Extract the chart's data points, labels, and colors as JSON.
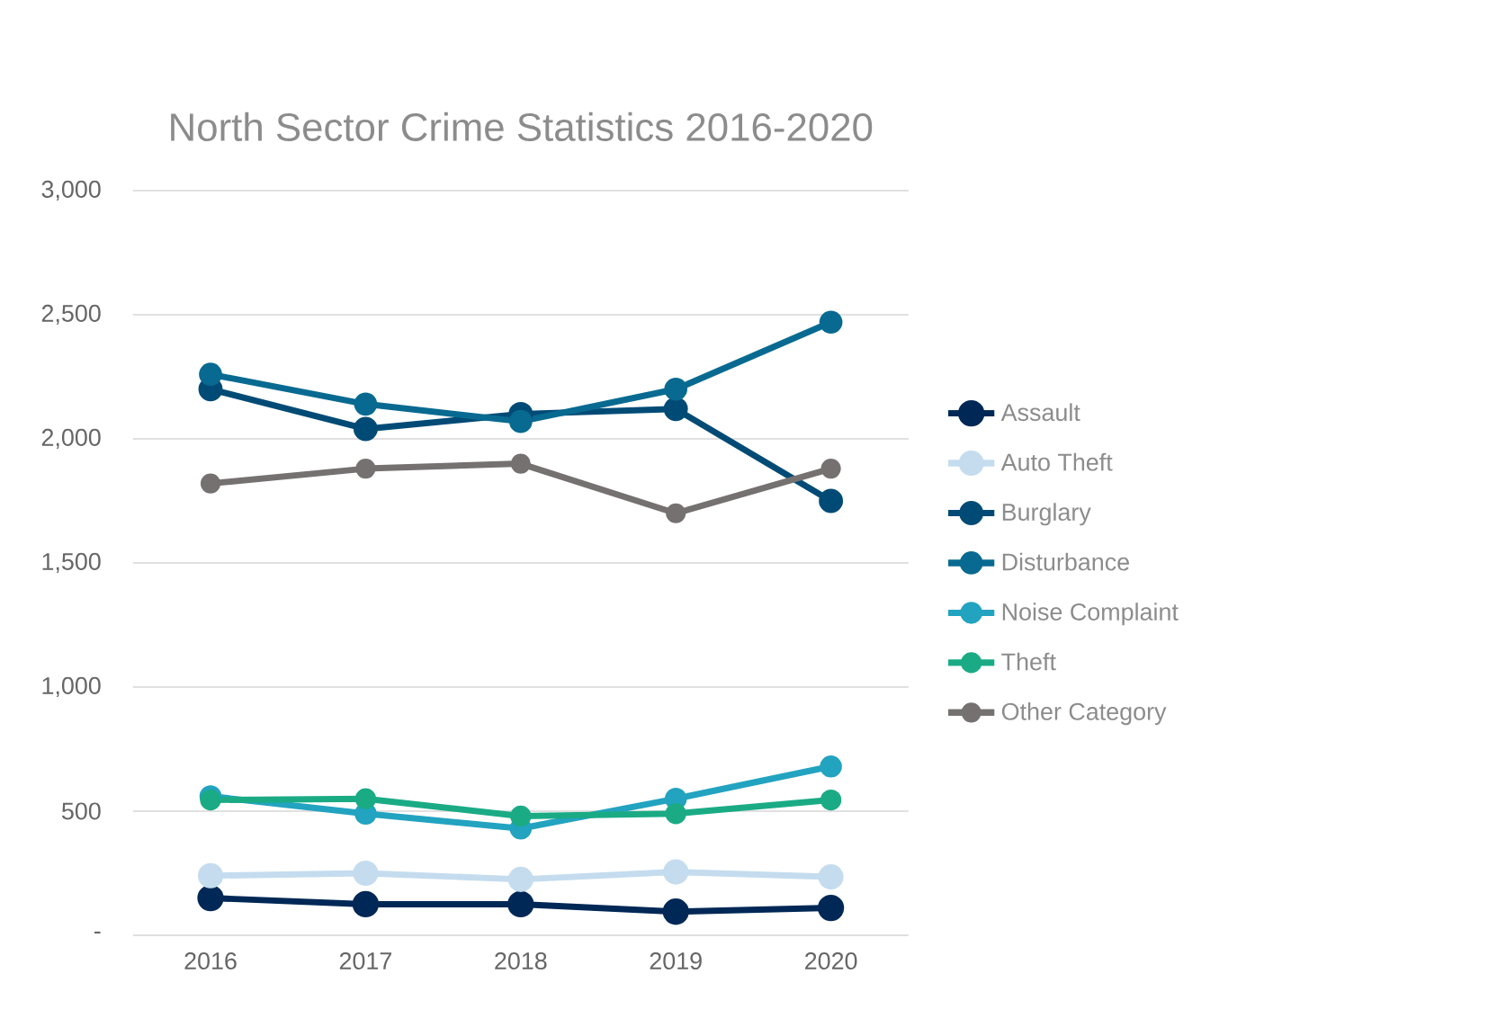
{
  "chart_data": {
    "type": "line",
    "title": "North Sector Crime Statistics 2016-2020",
    "categories": [
      "2016",
      "2017",
      "2018",
      "2019",
      "2020"
    ],
    "series": [
      {
        "name": "Assault",
        "color": "#002856",
        "values": [
          150,
          125,
          125,
          95,
          110
        ]
      },
      {
        "name": "Auto Theft",
        "color": "#c5dcef",
        "values": [
          240,
          250,
          225,
          255,
          235
        ]
      },
      {
        "name": "Burglary",
        "color": "#004b76",
        "values": [
          2200,
          2040,
          2100,
          2120,
          1750
        ]
      },
      {
        "name": "Disturbance",
        "color": "#086a91",
        "values": [
          2260,
          2140,
          2070,
          2200,
          2470
        ]
      },
      {
        "name": "Noise Complaint",
        "color": "#22a3c0",
        "values": [
          560,
          490,
          430,
          550,
          680
        ]
      },
      {
        "name": "Theft",
        "color": "#1aab85",
        "values": [
          545,
          550,
          480,
          490,
          545
        ]
      },
      {
        "name": "Other Category",
        "color": "#767171",
        "values": [
          1820,
          1880,
          1900,
          1700,
          1880
        ]
      }
    ],
    "ylim": [
      0,
      3000
    ],
    "yticks": [
      {
        "value": 0,
        "label": "-"
      },
      500,
      {
        "value": 1000,
        "label": "1,000"
      },
      {
        "value": 1500,
        "label": "1,500"
      },
      {
        "value": 2000,
        "label": "2,000"
      },
      {
        "value": 2500,
        "label": "2,500"
      },
      {
        "value": 3000,
        "label": "3,000"
      }
    ],
    "grid": "y",
    "legend": "right",
    "marker": "circle",
    "line_style": "solid"
  }
}
